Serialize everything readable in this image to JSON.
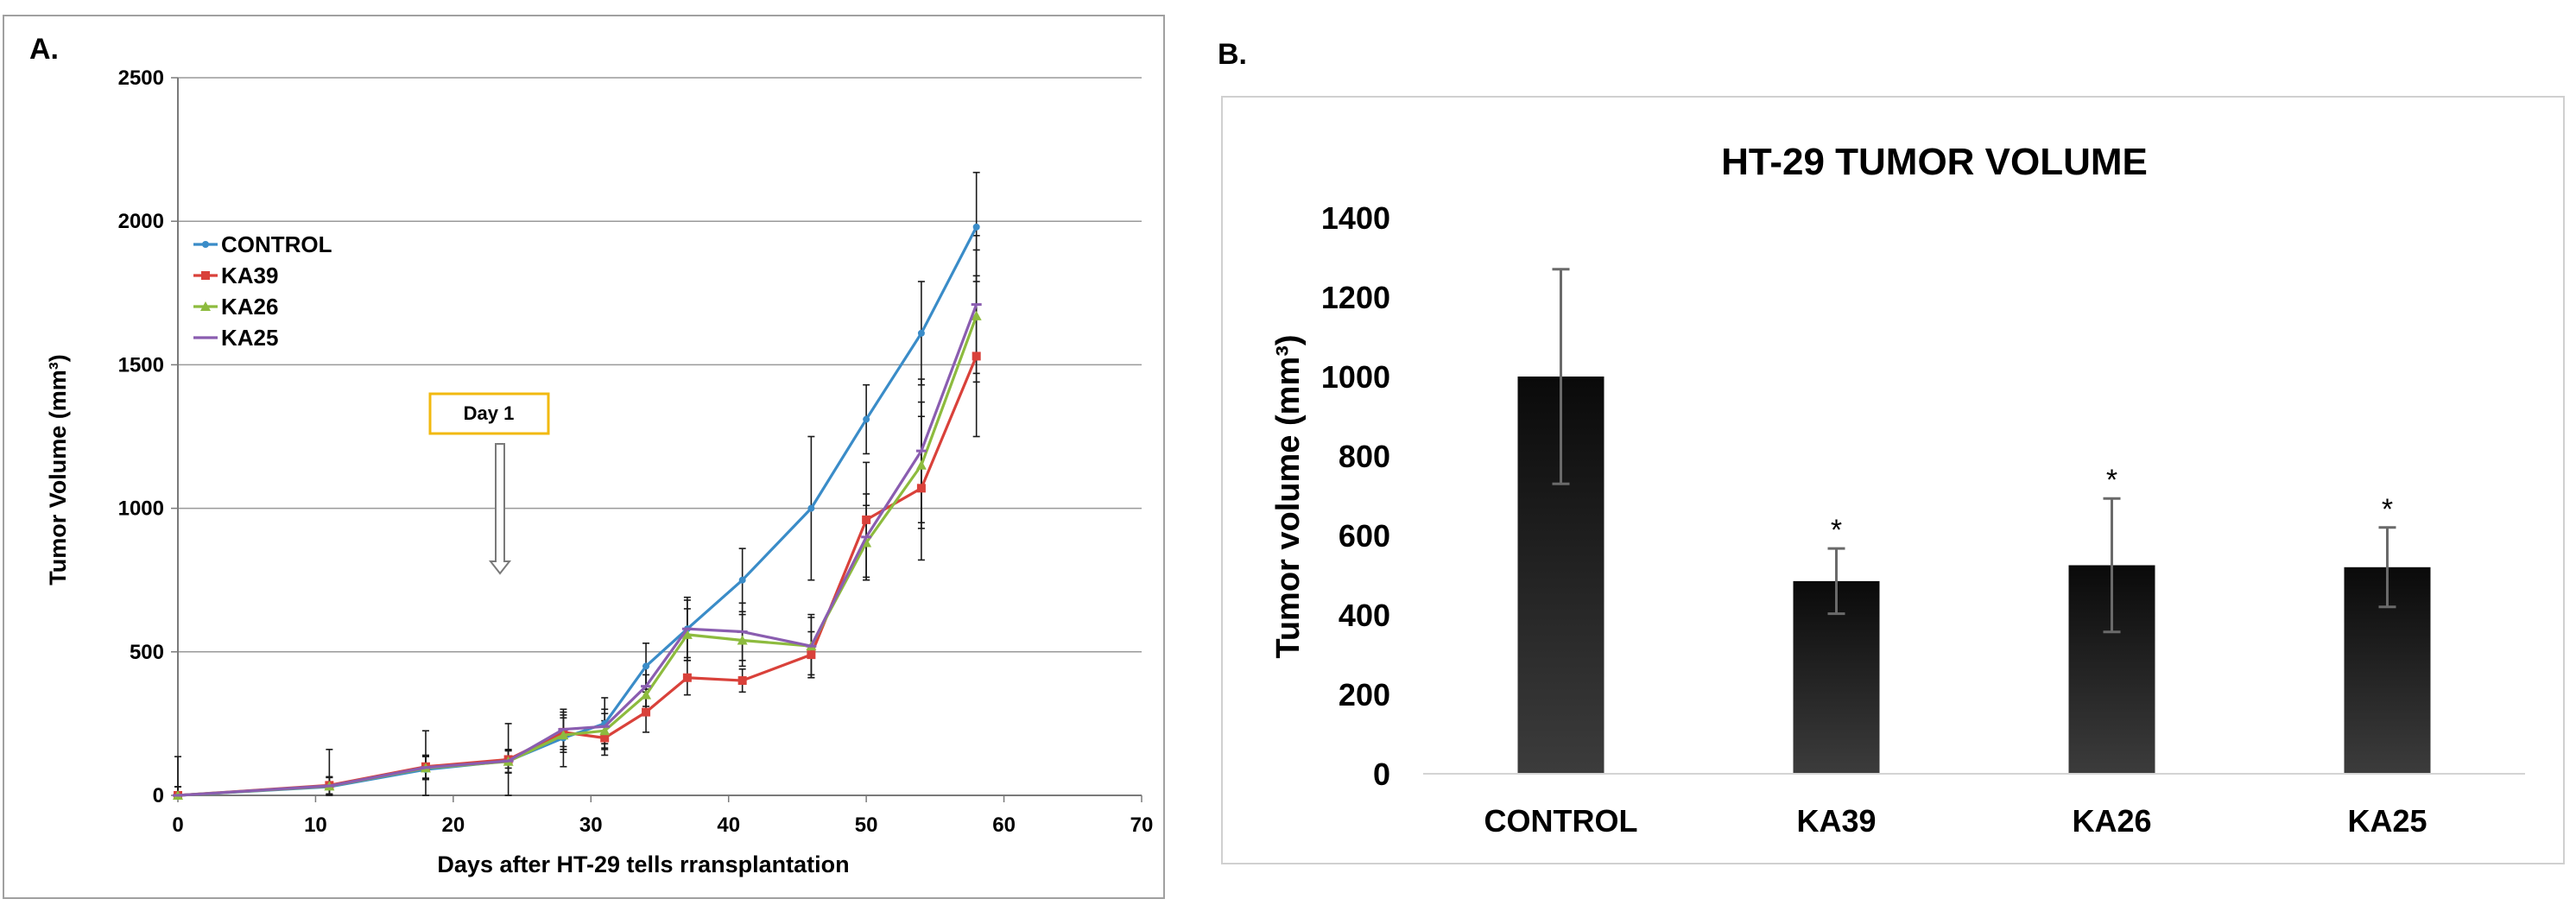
{
  "chart_data": [
    {
      "panel": "A.",
      "type": "line",
      "title": "",
      "xlabel": "Days after  HT-29 tells rransplantation",
      "ylabel": "Tumor Volume (mm³)",
      "xlim": [
        0,
        70
      ],
      "ylim": [
        0,
        2500
      ],
      "xticks": [
        "0",
        "10",
        "20",
        "30",
        "40",
        "50",
        "60",
        "70"
      ],
      "yticks": [
        "0",
        "500",
        "1000",
        "1500",
        "2000",
        "2500"
      ],
      "grid": "horizontal",
      "legend_position": "top-left",
      "annotation": {
        "label": "Day 1",
        "x_day": 23
      },
      "series": [
        {
          "name": "CONTROL",
          "color": "#3a8cc8",
          "x": [
            0,
            11,
            18,
            24,
            28,
            31,
            34,
            37,
            41,
            46,
            50,
            54,
            58
          ],
          "y": [
            0,
            30,
            90,
            120,
            200,
            250,
            450,
            580,
            750,
            1000,
            1310,
            1610,
            1980
          ],
          "err": [
            135,
            130,
            135,
            130,
            100,
            90,
            80,
            110,
            110,
            250,
            120,
            180,
            190
          ]
        },
        {
          "name": "KA39",
          "color": "#d9413a",
          "x": [
            0,
            11,
            18,
            24,
            28,
            31,
            34,
            37,
            41,
            46,
            50,
            54,
            58
          ],
          "y": [
            0,
            35,
            100,
            125,
            220,
            200,
            290,
            410,
            400,
            490,
            960,
            1070,
            1530
          ],
          "err": [
            30,
            30,
            40,
            30,
            60,
            60,
            70,
            60,
            40,
            80,
            200,
            250,
            280
          ]
        },
        {
          "name": "KA26",
          "color": "#8dbb3e",
          "x": [
            0,
            11,
            18,
            24,
            28,
            31,
            34,
            37,
            41,
            46,
            50,
            54,
            58
          ],
          "y": [
            0,
            32,
            95,
            118,
            210,
            225,
            350,
            560,
            540,
            520,
            880,
            1150,
            1670
          ],
          "err": [
            30,
            30,
            40,
            40,
            60,
            60,
            70,
            90,
            90,
            100,
            130,
            220,
            230
          ]
        },
        {
          "name": "KA25",
          "color": "#8a5db0",
          "x": [
            0,
            11,
            18,
            24,
            28,
            31,
            34,
            37,
            41,
            46,
            50,
            54,
            58
          ],
          "y": [
            0,
            33,
            97,
            120,
            230,
            240,
            380,
            580,
            570,
            520,
            900,
            1200,
            1710
          ],
          "err": [
            30,
            30,
            40,
            40,
            60,
            60,
            70,
            100,
            100,
            110,
            150,
            250,
            240
          ]
        }
      ]
    },
    {
      "panel": "B.",
      "type": "bar",
      "title": "HT-29 TUMOR VOLUME",
      "xlabel": "",
      "ylabel": "Tumor volume (mm³)",
      "ylim": [
        0,
        1400
      ],
      "yticks": [
        "0",
        "200",
        "400",
        "600",
        "800",
        "1000",
        "1200",
        "1400"
      ],
      "grid": "none",
      "categories": [
        "CONTROL",
        "KA39",
        "KA26",
        "KA25"
      ],
      "values": [
        1000,
        485,
        525,
        520
      ],
      "err": [
        270,
        82,
        168,
        100
      ],
      "significance": [
        "",
        "*",
        "*",
        "*"
      ]
    }
  ]
}
